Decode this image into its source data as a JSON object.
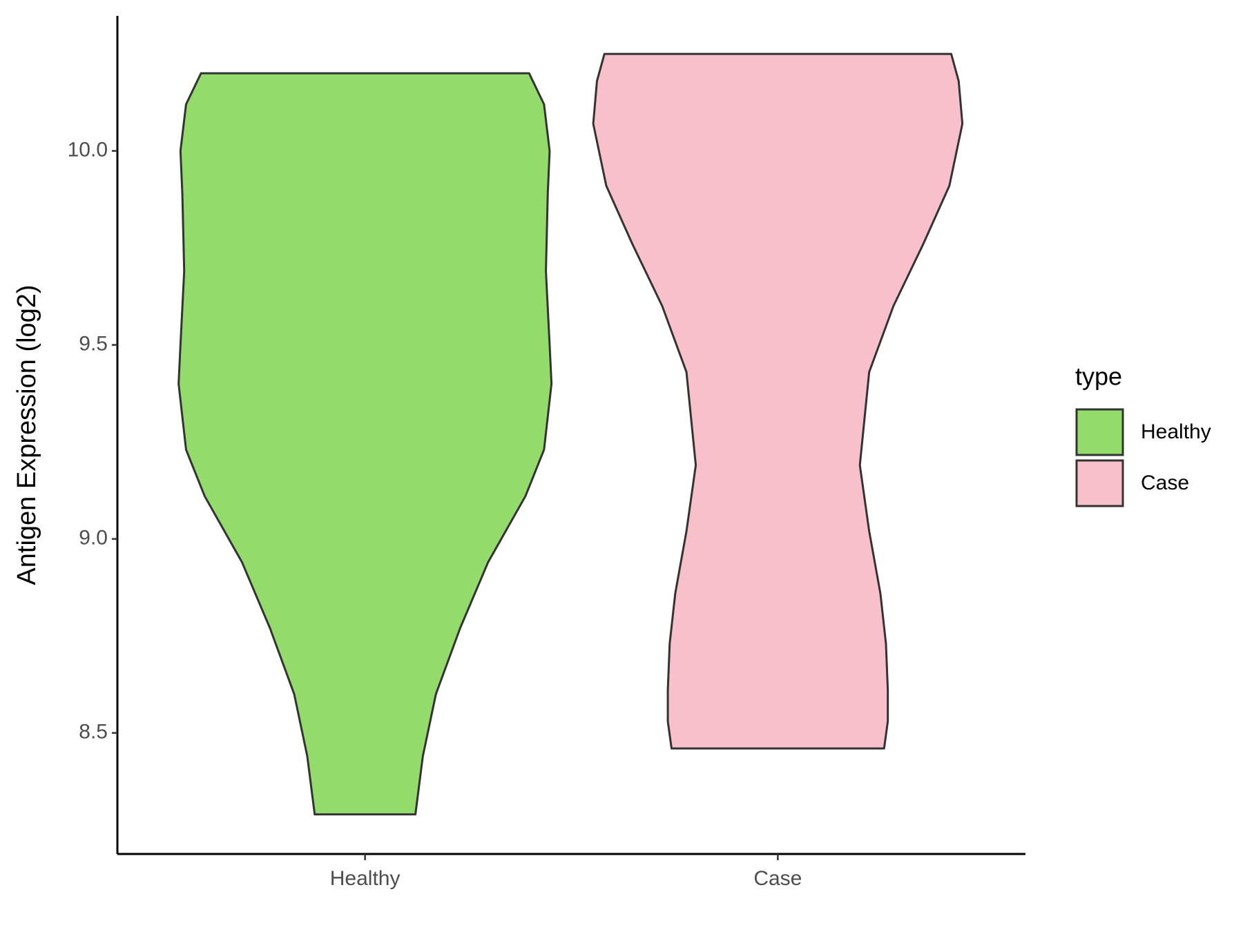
{
  "chart_data": {
    "type": "violin",
    "y_label": "Antigen Expression (log2)",
    "categories": [
      "Healthy",
      "Case"
    ],
    "legend_title": "type",
    "legend_position": "right",
    "ylim": [
      8.188,
      10.348
    ],
    "yticks": [
      {
        "value": 8.5,
        "label": "8.5"
      },
      {
        "value": 9,
        "label": "9.0"
      },
      {
        "value": 9.5,
        "label": "9.5"
      },
      {
        "value": 10,
        "label": "10.0"
      }
    ],
    "series": [
      {
        "name": "Healthy",
        "color": "#93dc6b",
        "y": [
          10.2,
          10.12,
          10.0,
          9.89,
          9.69,
          9.5,
          9.4,
          9.23,
          9.11,
          8.94,
          8.77,
          8.6,
          8.44,
          8.29
        ],
        "density": [
          0.88,
          0.96,
          0.99,
          0.98,
          0.97,
          0.99,
          1.0,
          0.96,
          0.86,
          0.66,
          0.51,
          0.38,
          0.31,
          0.27
        ]
      },
      {
        "name": "Case",
        "color": "#f7c0cb",
        "y": [
          10.25,
          10.18,
          10.07,
          9.91,
          9.76,
          9.6,
          9.43,
          9.19,
          9.02,
          8.86,
          8.73,
          8.61,
          8.53,
          8.46
        ],
        "density": [
          0.93,
          0.97,
          0.99,
          0.92,
          0.78,
          0.62,
          0.49,
          0.44,
          0.49,
          0.55,
          0.58,
          0.59,
          0.59,
          0.57
        ]
      }
    ]
  }
}
